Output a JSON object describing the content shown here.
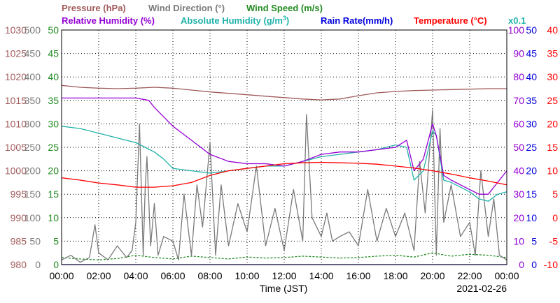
{
  "colors": {
    "pressure": "#a05a5a",
    "wind_dir": "#7a7a7a",
    "wind_speed": "#228b22",
    "humidity_rel": "#9400d3",
    "humidity_abs": "#20b2aa",
    "rain": "#0000dd",
    "temperature": "#ff0000",
    "axis": "#000000"
  },
  "titles": {
    "pressure": "Pressure (hPa)",
    "wind_dir": "Wind Direction (°)",
    "wind_speed": "Wind Speed (m/s)",
    "humidity_rel": "Relative Humidity (%)",
    "humidity_abs": "Absolute Humidity (g/m",
    "humidity_abs_sup": "3",
    "humidity_abs_close": ")",
    "rain": "Rain Rate(mm/h)",
    "temperature": "Temperature (°C)",
    "scale_note": "x0.1"
  },
  "chart_data": {
    "type": "line",
    "xlabel": "Time (JST)",
    "date": "2021-02-26",
    "x_ticks": [
      "00:00",
      "02:00",
      "04:00",
      "06:00",
      "08:00",
      "10:00",
      "12:00",
      "14:00",
      "16:00",
      "18:00",
      "20:00",
      "22:00",
      "00:00"
    ],
    "xlim": [
      0,
      24
    ],
    "axes": {
      "pressure": {
        "ticks": [
          "1030",
          "1025",
          "1020",
          "1015",
          "1010",
          "1005",
          "1000",
          "995",
          "990",
          "985",
          "980"
        ],
        "ylim": [
          980,
          1030
        ]
      },
      "wind_dir": {
        "ticks": [
          "500",
          "450",
          "400",
          "350",
          "300",
          "250",
          "200",
          "150",
          "100",
          "50",
          "0"
        ],
        "ylim": [
          0,
          500
        ]
      },
      "wind_speed": {
        "ticks": [
          "50",
          "45",
          "40",
          "35",
          "30",
          "25",
          "20",
          "15",
          "10",
          "5",
          "0"
        ],
        "ylim": [
          0,
          50
        ]
      },
      "humidity": {
        "ticks": [
          "100",
          "90",
          "80",
          "70",
          "60",
          "50",
          "40",
          "30",
          "20",
          "10",
          "0"
        ],
        "ylim": [
          0,
          100
        ]
      },
      "rain": {
        "ticks": [
          "50",
          "45",
          "40",
          "35",
          "30",
          "25",
          "20",
          "15",
          "10",
          "5",
          "0"
        ],
        "ylim": [
          0,
          50
        ]
      },
      "temperature": {
        "ticks": [
          "40",
          "35",
          "30",
          "25",
          "20",
          "15",
          "10",
          "5",
          "0",
          "-5",
          "-10"
        ],
        "ylim": [
          -10,
          40
        ]
      }
    },
    "series": [
      {
        "name": "Pressure (hPa)",
        "axis": "pressure",
        "color": "#a05a5a",
        "x": [
          0,
          1,
          2,
          3,
          4,
          5,
          6,
          7,
          8,
          9,
          10,
          11,
          12,
          13,
          14,
          15,
          16,
          17,
          18,
          19,
          20,
          21,
          22,
          23,
          24
        ],
        "y": [
          1018.2,
          1017.8,
          1017.6,
          1017.5,
          1017.6,
          1017.8,
          1017.6,
          1017.2,
          1016.8,
          1016.5,
          1016.2,
          1015.9,
          1015.6,
          1015.3,
          1015.1,
          1015.3,
          1016.0,
          1016.6,
          1016.9,
          1017.1,
          1017.2,
          1017.3,
          1017.4,
          1017.5,
          1017.5
        ]
      },
      {
        "name": "Temperature (°C)",
        "axis": "temperature",
        "color": "#ff0000",
        "x": [
          0,
          1,
          2,
          3,
          4,
          5,
          6,
          7,
          8,
          9,
          10,
          11,
          12,
          13,
          14,
          15,
          16,
          17,
          18,
          19,
          20,
          21,
          22,
          23,
          24
        ],
        "y": [
          8.5,
          8.0,
          7.4,
          7.0,
          6.5,
          6.5,
          6.8,
          7.5,
          9.0,
          10.0,
          10.5,
          11.0,
          11.5,
          11.7,
          11.8,
          11.7,
          11.6,
          11.4,
          11.0,
          10.6,
          10.0,
          9.3,
          8.5,
          7.8,
          7.0
        ]
      },
      {
        "name": "Relative Humidity (%)",
        "axis": "humidity",
        "color": "#9400d3",
        "x": [
          0,
          1,
          2,
          3,
          4,
          4.7,
          5,
          5.5,
          6,
          7,
          8,
          9,
          10,
          11,
          12,
          13,
          14,
          15,
          16,
          17,
          18,
          18.6,
          19,
          19.5,
          20,
          20.2,
          20.6,
          21,
          21.5,
          22,
          22.5,
          23,
          23.5,
          24
        ],
        "y": [
          71,
          71,
          71,
          71,
          71,
          70,
          67,
          63,
          59,
          53,
          47,
          44,
          43,
          43,
          42,
          44,
          47,
          48,
          48,
          49,
          50,
          53,
          40,
          45,
          60,
          55,
          38,
          36,
          34,
          32,
          30,
          30,
          35,
          40
        ]
      },
      {
        "name": "Absolute Humidity (g/m3) x0.1",
        "axis": "humidity",
        "color": "#20b2aa",
        "x": [
          0,
          1,
          2,
          3,
          4,
          4.5,
          5,
          5.5,
          6,
          7,
          8,
          9,
          10,
          11,
          12,
          13,
          14,
          15,
          16,
          17,
          18,
          18.6,
          19,
          19.5,
          20,
          20.2,
          20.6,
          21,
          21.5,
          22,
          22.5,
          23,
          23.5,
          24
        ],
        "y": [
          59,
          58,
          56,
          54,
          52,
          50,
          48,
          45,
          41,
          40,
          39,
          40,
          41,
          42,
          42,
          44,
          46,
          47,
          48,
          49,
          51,
          50,
          36,
          40,
          57,
          55,
          36,
          35,
          33,
          31,
          28,
          27,
          30,
          31
        ]
      },
      {
        "name": "Rain Rate(mm/h)",
        "axis": "rain",
        "color": "#0000dd",
        "x": [
          0,
          2,
          4,
          6,
          8,
          10,
          12,
          14,
          16,
          18,
          20,
          22,
          24
        ],
        "y": [
          0,
          0,
          0,
          0,
          0,
          0,
          0,
          0,
          0,
          0,
          0,
          0,
          0
        ]
      },
      {
        "name": "Wind Direction (°)",
        "axis": "wind_dir",
        "color": "#7a7a7a",
        "x": [
          0,
          0.5,
          1,
          1.5,
          1.8,
          2,
          2.5,
          3,
          3.5,
          3.8,
          4,
          4.2,
          4.4,
          4.5,
          4.6,
          4.8,
          5,
          5.2,
          5.5,
          6,
          6.3,
          6.6,
          7,
          7.3,
          7.6,
          8,
          8.3,
          8.6,
          9,
          9.5,
          10,
          10.5,
          11,
          11.5,
          12,
          12.5,
          13,
          13.2,
          13.5,
          14,
          14.3,
          14.6,
          15,
          15.5,
          16,
          16.5,
          17,
          17.5,
          18,
          18.5,
          19,
          19.3,
          19.6,
          20,
          20.2,
          20.4,
          20.6,
          21,
          21.5,
          22,
          22.3,
          22.6,
          23,
          23.3,
          23.6,
          24
        ],
        "y": [
          10,
          20,
          5,
          15,
          85,
          25,
          10,
          40,
          15,
          30,
          90,
          300,
          20,
          160,
          230,
          40,
          130,
          20,
          60,
          50,
          10,
          150,
          20,
          170,
          80,
          260,
          20,
          170,
          40,
          130,
          70,
          210,
          40,
          120,
          30,
          160,
          50,
          320,
          100,
          60,
          110,
          50,
          60,
          70,
          40,
          160,
          50,
          120,
          60,
          110,
          30,
          220,
          110,
          330,
          20,
          290,
          90,
          170,
          60,
          90,
          20,
          200,
          60,
          140,
          20,
          10
        ]
      },
      {
        "name": "Wind Speed (m/s)",
        "axis": "wind_speed",
        "color": "#228b22",
        "x": [
          0,
          1,
          2,
          3,
          4,
          5,
          6,
          7,
          8,
          9,
          10,
          11,
          12,
          13,
          14,
          15,
          16,
          17,
          18,
          19,
          20,
          21,
          22,
          23,
          24
        ],
        "y": [
          1.5,
          1.2,
          1.0,
          1.3,
          2.0,
          1.5,
          1.2,
          1.8,
          1.5,
          1.2,
          1.6,
          1.4,
          1.5,
          1.8,
          1.6,
          1.4,
          1.5,
          1.8,
          2.0,
          1.6,
          2.5,
          1.8,
          2.2,
          2.0,
          1.5
        ]
      }
    ]
  }
}
